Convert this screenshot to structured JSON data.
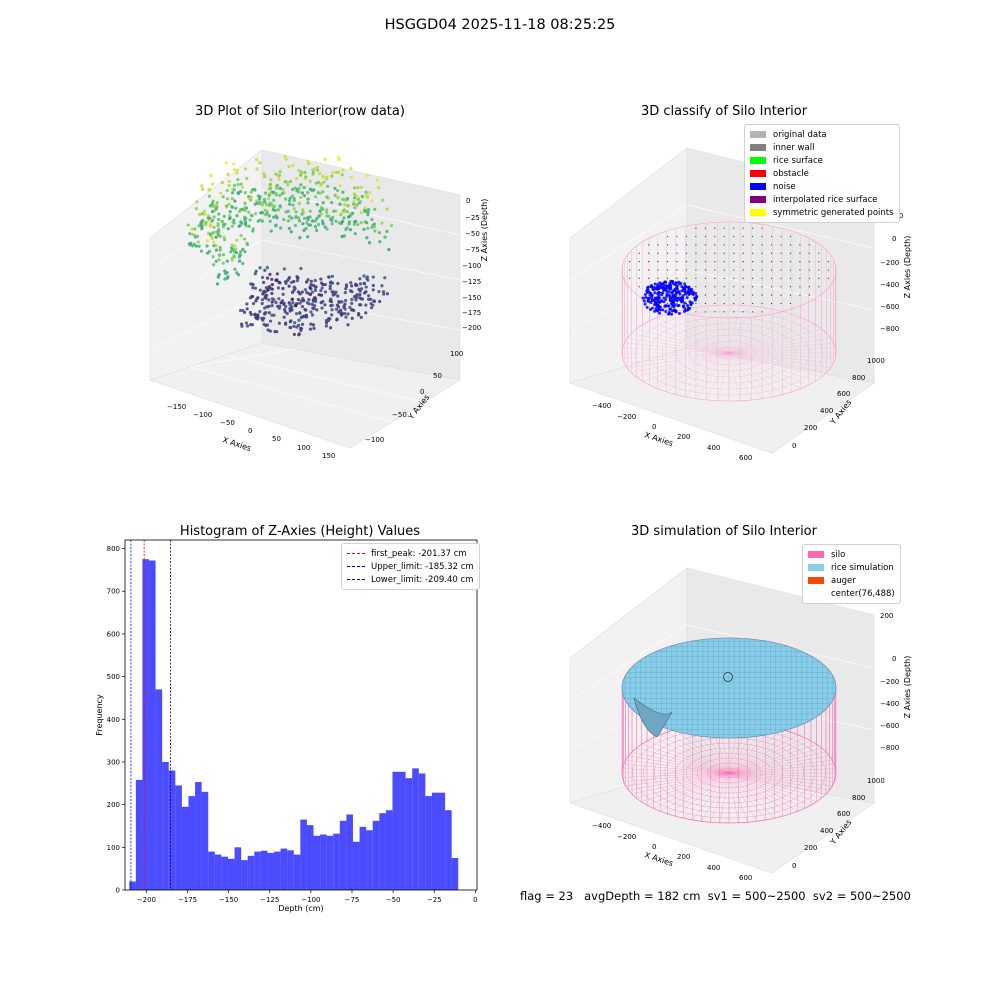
{
  "figure": {
    "suptitle": "HSGGD04 2025-11-18 08:25:25",
    "status_line": "flag = 23   avgDepth = 182 cm  sv1 = 500~2500  sv2 = 500~2500"
  },
  "panels": {
    "raw": {
      "title": "3D Plot of Silo Interior(row data)",
      "xlabel": "X Axies",
      "ylabel": "Y Axies",
      "zlabel": "Z Axies (Depth)",
      "xticks": [
        "−150",
        "−100",
        "−50",
        "0",
        "50",
        "100",
        "150"
      ],
      "yticks": [
        "−100",
        "−50",
        "0",
        "50",
        "100"
      ],
      "zticks": [
        "0",
        "−25",
        "−50",
        "−75",
        "−100",
        "−125",
        "−150",
        "−175",
        "−200"
      ]
    },
    "classify": {
      "title": "3D classify of Silo Interior",
      "xlabel": "X Axies",
      "ylabel": "Y Axies",
      "zlabel": "Z Axies (Depth)",
      "xticks": [
        "−400",
        "−200",
        "0",
        "200",
        "400",
        "600"
      ],
      "yticks": [
        "0",
        "200",
        "400",
        "600",
        "800",
        "1000"
      ],
      "zticks": [
        "200",
        "0",
        "−200",
        "−400",
        "−600",
        "−800"
      ],
      "legend": [
        {
          "label": "original data",
          "color": "#b3b3b3"
        },
        {
          "label": "inner wall",
          "color": "#808080"
        },
        {
          "label": "rice surface",
          "color": "#00ff00"
        },
        {
          "label": "obstacle",
          "color": "#ff0000"
        },
        {
          "label": "noise",
          "color": "#0000ff"
        },
        {
          "label": "interpolated rice surface",
          "color": "#800080"
        },
        {
          "label": "symmetric generated points",
          "color": "#ffff00"
        }
      ]
    },
    "simulation": {
      "title": "3D simulation of Silo Interior",
      "xlabel": "X Axies",
      "ylabel": "Y Axies",
      "zlabel": "Z Axies (Depth)",
      "xticks": [
        "−400",
        "−200",
        "0",
        "200",
        "400",
        "600"
      ],
      "yticks": [
        "0",
        "200",
        "400",
        "600",
        "800",
        "1000"
      ],
      "zticks": [
        "200",
        "0",
        "−200",
        "−400",
        "−600",
        "−800"
      ],
      "legend": [
        {
          "label": "silo",
          "color": "#ff69b4"
        },
        {
          "label": "rice simulation",
          "color": "#87ceeb"
        },
        {
          "label": "auger",
          "color": "#ff4500"
        },
        {
          "label": "center(76,488)",
          "color": "transparent"
        }
      ]
    }
  },
  "chart_data": [
    {
      "type": "bar",
      "title": "Histogram of Z-Axies (Height) Values",
      "xlabel": "Depth (cm)",
      "ylabel": "Frequency",
      "xlim": [
        -213,
        1
      ],
      "ylim": [
        0,
        820
      ],
      "xticks": [
        -200,
        -175,
        -150,
        -125,
        -100,
        -75,
        -50,
        -25,
        0
      ],
      "yticks": [
        0,
        100,
        200,
        300,
        400,
        500,
        600,
        700,
        800
      ],
      "bin_start": -210.4,
      "bin_width": 4.0,
      "values": [
        20,
        258,
        775,
        772,
        470,
        300,
        280,
        245,
        195,
        220,
        253,
        230,
        90,
        83,
        78,
        73,
        100,
        70,
        80,
        90,
        92,
        87,
        90,
        97,
        93,
        83,
        165,
        152,
        127,
        130,
        127,
        132,
        162,
        177,
        113,
        148,
        140,
        162,
        180,
        187,
        277,
        277,
        262,
        285,
        273,
        220,
        228,
        228,
        187,
        75
      ],
      "bar_color": "#0000ff",
      "lines": [
        {
          "label": "first_peak: -201.37 cm",
          "x": -201.37,
          "color": "#ff0000"
        },
        {
          "label": "Upper_limit: -185.32 cm",
          "x": -185.32,
          "color": "#00008b"
        },
        {
          "label": "Lower_limit: -209.40 cm",
          "x": -209.4,
          "color": "#0000ff"
        }
      ],
      "legend_position": "top-right"
    }
  ]
}
